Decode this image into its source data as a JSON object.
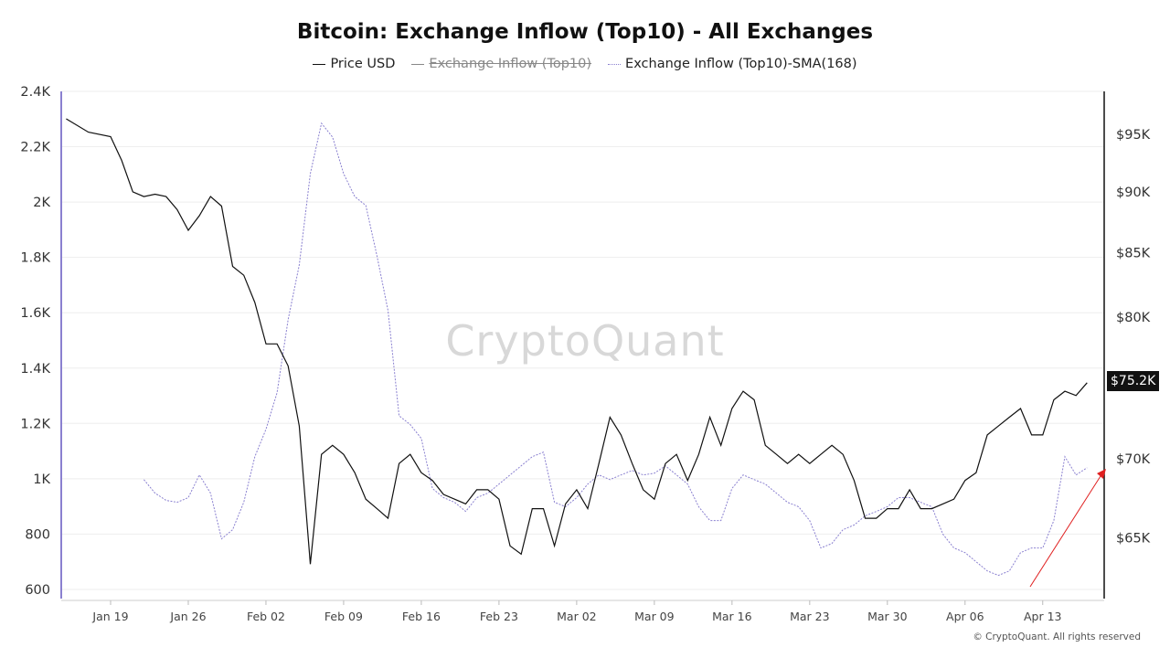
{
  "chart_data": {
    "type": "line",
    "title": "Bitcoin: Exchange Inflow (Top10) - All Exchanges",
    "legend": [
      {
        "name": "Price USD",
        "color": "#111111",
        "style": "solid",
        "enabled": true
      },
      {
        "name": "Exchange Inflow (Top10)",
        "color": "#888888",
        "style": "solid",
        "enabled": false
      },
      {
        "name": "Exchange Inflow (Top10)-SMA(168)",
        "color": "#8a80d0",
        "style": "dotted",
        "enabled": true
      }
    ],
    "legend_placement": "top-center",
    "x_ticks": [
      "Jan 19",
      "Jan 26",
      "Feb 02",
      "Feb 09",
      "Feb 16",
      "Feb 23",
      "Mar 02",
      "Mar 09",
      "Mar 16",
      "Mar 23",
      "Mar 30",
      "Apr 06",
      "Apr 13"
    ],
    "left_axis": {
      "ticks": [
        "2.4K",
        "2.2K",
        "2K",
        "1.8K",
        "1.6K",
        "1.4K",
        "1.2K",
        "1K",
        "800",
        "600"
      ],
      "range": [
        600,
        2400
      ],
      "scale": "linear",
      "color": "#8a80d0"
    },
    "right_axis": {
      "ticks": [
        "$95K",
        "$90K",
        "$85K",
        "$80K",
        "$70K",
        "$65K"
      ],
      "tick_values": [
        95000,
        90000,
        85000,
        80000,
        70000,
        65000
      ],
      "range": [
        61400,
        98900
      ],
      "scale": "log"
    },
    "grid": true,
    "last_price_label": "$75.2K",
    "annotation": {
      "type": "arrow",
      "color": "#e02020"
    },
    "series": [
      {
        "name": "Price USD",
        "axis": "right",
        "points": [
          [
            "01-15",
            96400
          ],
          [
            "01-17",
            95200
          ],
          [
            "01-19",
            94800
          ],
          [
            "01-20",
            92700
          ],
          [
            "01-21",
            90000
          ],
          [
            "01-22",
            89600
          ],
          [
            "01-23",
            89800
          ],
          [
            "01-24",
            89600
          ],
          [
            "01-25",
            88500
          ],
          [
            "01-26",
            86800
          ],
          [
            "01-27",
            88000
          ],
          [
            "01-28",
            89600
          ],
          [
            "01-29",
            88800
          ],
          [
            "01-30",
            83900
          ],
          [
            "01-31",
            83200
          ],
          [
            "02-01",
            81100
          ],
          [
            "02-02",
            78000
          ],
          [
            "02-03",
            78000
          ],
          [
            "02-04",
            76400
          ],
          [
            "02-05",
            72200
          ],
          [
            "02-06",
            63400
          ],
          [
            "02-07",
            70300
          ],
          [
            "02-08",
            70900
          ],
          [
            "02-09",
            70300
          ],
          [
            "02-10",
            69100
          ],
          [
            "02-11",
            67400
          ],
          [
            "02-12",
            66800
          ],
          [
            "02-13",
            66200
          ],
          [
            "02-14",
            69700
          ],
          [
            "02-15",
            70300
          ],
          [
            "02-16",
            69100
          ],
          [
            "02-17",
            68600
          ],
          [
            "02-18",
            67700
          ],
          [
            "02-19",
            67400
          ],
          [
            "02-20",
            67100
          ],
          [
            "02-21",
            68000
          ],
          [
            "02-22",
            68000
          ],
          [
            "02-23",
            67400
          ],
          [
            "02-24",
            64500
          ],
          [
            "02-25",
            64000
          ],
          [
            "02-26",
            66800
          ],
          [
            "02-27",
            66800
          ],
          [
            "02-28",
            64500
          ],
          [
            "03-01",
            67100
          ],
          [
            "03-02",
            68000
          ],
          [
            "03-03",
            66800
          ],
          [
            "03-04",
            69700
          ],
          [
            "03-05",
            72800
          ],
          [
            "03-06",
            71600
          ],
          [
            "03-07",
            69700
          ],
          [
            "03-08",
            68000
          ],
          [
            "03-09",
            67400
          ],
          [
            "03-10",
            69700
          ],
          [
            "03-11",
            70300
          ],
          [
            "03-12",
            68600
          ],
          [
            "03-13",
            70300
          ],
          [
            "03-14",
            72800
          ],
          [
            "03-15",
            70900
          ],
          [
            "03-16",
            73400
          ],
          [
            "03-17",
            74600
          ],
          [
            "03-18",
            74000
          ],
          [
            "03-19",
            70900
          ],
          [
            "03-20",
            70300
          ],
          [
            "03-21",
            69700
          ],
          [
            "03-22",
            70300
          ],
          [
            "03-23",
            69700
          ],
          [
            "03-24",
            70300
          ],
          [
            "03-25",
            70900
          ],
          [
            "03-26",
            70300
          ],
          [
            "03-27",
            68600
          ],
          [
            "03-28",
            66200
          ],
          [
            "03-29",
            66200
          ],
          [
            "03-30",
            66800
          ],
          [
            "03-31",
            66800
          ],
          [
            "04-01",
            68000
          ],
          [
            "04-02",
            66800
          ],
          [
            "04-03",
            66800
          ],
          [
            "04-04",
            67100
          ],
          [
            "04-05",
            67400
          ],
          [
            "04-06",
            68600
          ],
          [
            "04-07",
            69100
          ],
          [
            "04-08",
            71600
          ],
          [
            "04-09",
            72200
          ],
          [
            "04-10",
            72800
          ],
          [
            "04-11",
            73400
          ],
          [
            "04-12",
            71600
          ],
          [
            "04-13",
            71600
          ],
          [
            "04-14",
            74000
          ],
          [
            "04-15",
            74600
          ],
          [
            "04-16",
            74300
          ],
          [
            "04-17",
            75200
          ]
        ]
      },
      {
        "name": "Exchange Inflow (Top10)-SMA(168)",
        "axis": "left",
        "points": [
          [
            "01-22",
            997
          ],
          [
            "01-23",
            948
          ],
          [
            "01-24",
            922
          ],
          [
            "01-25",
            915
          ],
          [
            "01-26",
            932
          ],
          [
            "01-27",
            1014
          ],
          [
            "01-28",
            948
          ],
          [
            "01-29",
            783
          ],
          [
            "01-30",
            816
          ],
          [
            "01-31",
            915
          ],
          [
            "02-01",
            1080
          ],
          [
            "02-02",
            1179
          ],
          [
            "02-03",
            1311
          ],
          [
            "02-04",
            1575
          ],
          [
            "02-05",
            1773
          ],
          [
            "02-06",
            2103
          ],
          [
            "02-07",
            2285
          ],
          [
            "02-08",
            2235
          ],
          [
            "02-09",
            2103
          ],
          [
            "02-10",
            2020
          ],
          [
            "02-11",
            1988
          ],
          [
            "02-12",
            1806
          ],
          [
            "02-13",
            1608
          ],
          [
            "02-14",
            1228
          ],
          [
            "02-15",
            1196
          ],
          [
            "02-16",
            1146
          ],
          [
            "02-17",
            965
          ],
          [
            "02-18",
            932
          ],
          [
            "02-19",
            915
          ],
          [
            "02-20",
            882
          ],
          [
            "02-21",
            932
          ],
          [
            "02-22",
            948
          ],
          [
            "02-23",
            981
          ],
          [
            "02-24",
            1014
          ],
          [
            "02-25",
            1047
          ],
          [
            "02-26",
            1080
          ],
          [
            "02-27",
            1096
          ],
          [
            "02-28",
            915
          ],
          [
            "03-01",
            899
          ],
          [
            "03-02",
            932
          ],
          [
            "03-03",
            981
          ],
          [
            "03-04",
            1014
          ],
          [
            "03-05",
            997
          ],
          [
            "03-06",
            1014
          ],
          [
            "03-07",
            1030
          ],
          [
            "03-08",
            1014
          ],
          [
            "03-09",
            1020
          ],
          [
            "03-10",
            1047
          ],
          [
            "03-11",
            1014
          ],
          [
            "03-12",
            981
          ],
          [
            "03-13",
            899
          ],
          [
            "03-14",
            849
          ],
          [
            "03-15",
            849
          ],
          [
            "03-16",
            965
          ],
          [
            "03-17",
            1014
          ],
          [
            "03-18",
            997
          ],
          [
            "03-19",
            981
          ],
          [
            "03-20",
            948
          ],
          [
            "03-21",
            915
          ],
          [
            "03-22",
            899
          ],
          [
            "03-23",
            849
          ],
          [
            "03-24",
            750
          ],
          [
            "03-25",
            766
          ],
          [
            "03-26",
            816
          ],
          [
            "03-27",
            833
          ],
          [
            "03-28",
            866
          ],
          [
            "03-29",
            882
          ],
          [
            "03-30",
            899
          ],
          [
            "03-31",
            932
          ],
          [
            "04-01",
            932
          ],
          [
            "04-02",
            915
          ],
          [
            "04-03",
            899
          ],
          [
            "04-04",
            800
          ],
          [
            "04-05",
            750
          ],
          [
            "04-06",
            733
          ],
          [
            "04-07",
            700
          ],
          [
            "04-08",
            667
          ],
          [
            "04-09",
            651
          ],
          [
            "04-10",
            667
          ],
          [
            "04-11",
            733
          ],
          [
            "04-12",
            750
          ],
          [
            "04-13",
            750
          ],
          [
            "04-14",
            849
          ],
          [
            "04-15",
            1080
          ],
          [
            "04-16",
            1014
          ],
          [
            "04-17",
            1040
          ]
        ]
      }
    ]
  },
  "watermark": "CryptoQuant",
  "copyright": "© CryptoQuant. All rights reserved"
}
